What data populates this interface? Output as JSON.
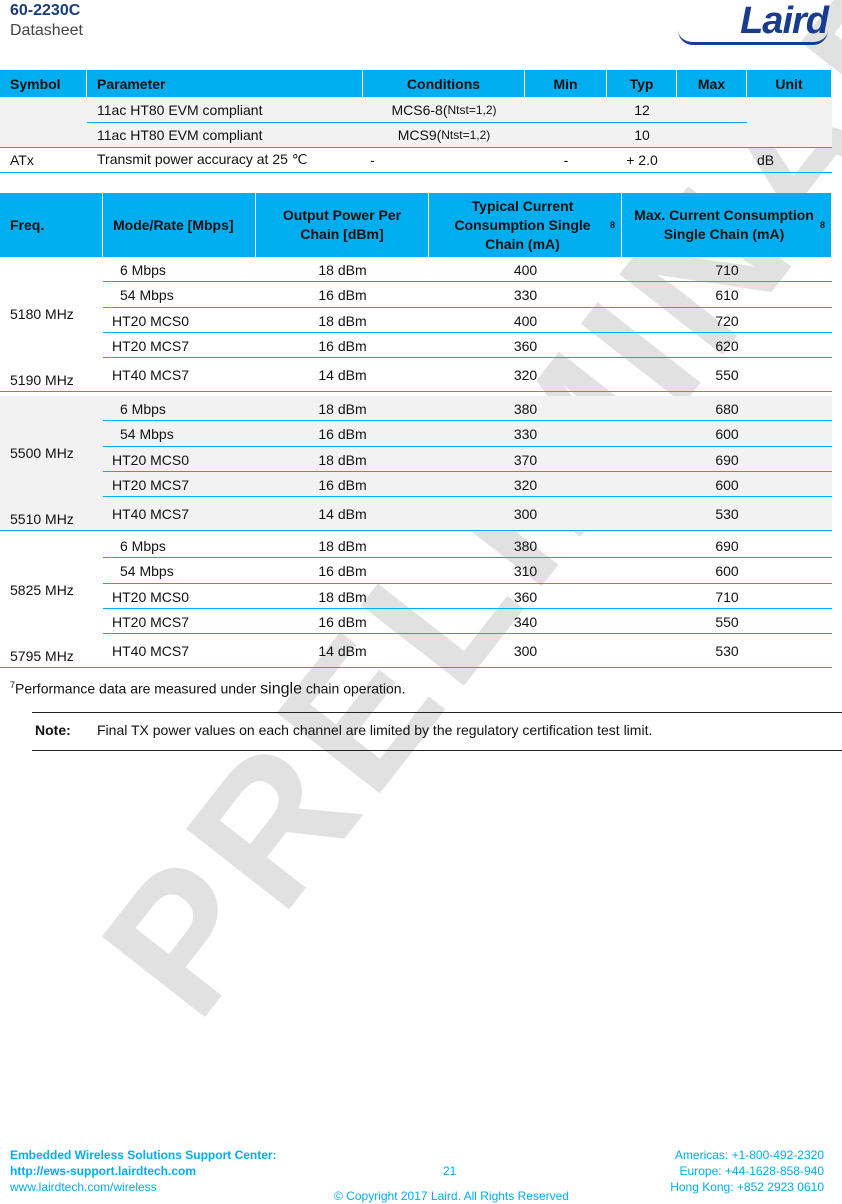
{
  "header": {
    "doc_number": "60-2230C",
    "doc_type": "Datasheet",
    "logo": "Laird"
  },
  "watermark": "PRELIMINARY",
  "table1": {
    "headers": [
      "Symbol",
      "Parameter",
      "Conditions",
      "Min",
      "Typ",
      "Max",
      "Unit"
    ],
    "rows": [
      {
        "symbol": "",
        "parameter": "11ac HT80 EVM compliant",
        "conditions_main": "MCS6-8(",
        "conditions_sub": "Ntst=1,2)",
        "min": "",
        "typ": "12",
        "max": "",
        "unit": ""
      },
      {
        "symbol": "",
        "parameter": "11ac HT80 EVM compliant",
        "conditions_main": "MCS9(",
        "conditions_sub": "Ntst=1,2)",
        "min": "",
        "typ": "10",
        "max": "",
        "unit": ""
      },
      {
        "symbol": "ATx",
        "parameter": "Transmit power accuracy at 25 ℃",
        "conditions_main": "-",
        "conditions_sub": "",
        "min": "-",
        "typ": "+ 2.0",
        "max": "",
        "unit": "dB"
      }
    ]
  },
  "table2": {
    "headers": [
      "Freq.",
      "Mode/Rate [Mbps]",
      "Output Power Per Chain [dBm]",
      "Typical Current Consumption Single Chain (mA)",
      "Max. Current Consumption Single Chain (mA)"
    ],
    "header_superscript": "8",
    "groups": [
      {
        "freq_a": "5180 MHz",
        "freq_b": "5190 MHz",
        "shaded": false,
        "rows": [
          [
            "6 Mbps",
            "18 dBm",
            "400",
            "710"
          ],
          [
            "54 Mbps",
            "16 dBm",
            "330",
            "610"
          ],
          [
            "HT20 MCS0",
            "18 dBm",
            "400",
            "720"
          ],
          [
            "HT20 MCS7",
            "16 dBm",
            "360",
            "620"
          ],
          [
            "HT40 MCS7",
            "14 dBm",
            "320",
            "550"
          ]
        ]
      },
      {
        "freq_a": "5500 MHz",
        "freq_b": "5510 MHz",
        "shaded": true,
        "rows": [
          [
            "6 Mbps",
            "18 dBm",
            "380",
            "680"
          ],
          [
            "54 Mbps",
            "16 dBm",
            "330",
            "600"
          ],
          [
            "HT20 MCS0",
            "18 dBm",
            "370",
            "690"
          ],
          [
            "HT20 MCS7",
            "16 dBm",
            "320",
            "600"
          ],
          [
            "HT40 MCS7",
            "14 dBm",
            "300",
            "530"
          ]
        ]
      },
      {
        "freq_a": "5825 MHz",
        "freq_b": "5795 MHz",
        "shaded": false,
        "rows": [
          [
            "6 Mbps",
            "18 dBm",
            "380",
            "690"
          ],
          [
            "54 Mbps",
            "16 dBm",
            "310",
            "600"
          ],
          [
            "HT20 MCS0",
            "18 dBm",
            "360",
            "710"
          ],
          [
            "HT20 MCS7",
            "16 dBm",
            "340",
            "550"
          ],
          [
            "HT40 MCS7",
            "14 dBm",
            "300",
            "530"
          ]
        ]
      }
    ]
  },
  "footnote": {
    "mark": "7",
    "text_a": "Performance data are measured under ",
    "text_b": "single",
    "text_c": " chain operation."
  },
  "note": {
    "label": "Note:",
    "text": "Final TX power values on each channel are limited by the regulatory certification test limit."
  },
  "footer": {
    "support_title": "Embedded Wireless Solutions Support Center:",
    "support_url": "http://ews-support.lairdtech.com",
    "website": "www.lairdtech.com/wireless",
    "page_number": "21",
    "copyright": "© Copyright 2017 Laird. All Rights Reserved",
    "americas": "Americas: +1-800-492-2320",
    "europe": "Europe: +44-1628-858-940",
    "hongkong": "Hong Kong: +852 2923 0610"
  },
  "colors": {
    "accent": "#00adef",
    "shade": "#f2f2f2",
    "brand": "#1a3c8f"
  }
}
